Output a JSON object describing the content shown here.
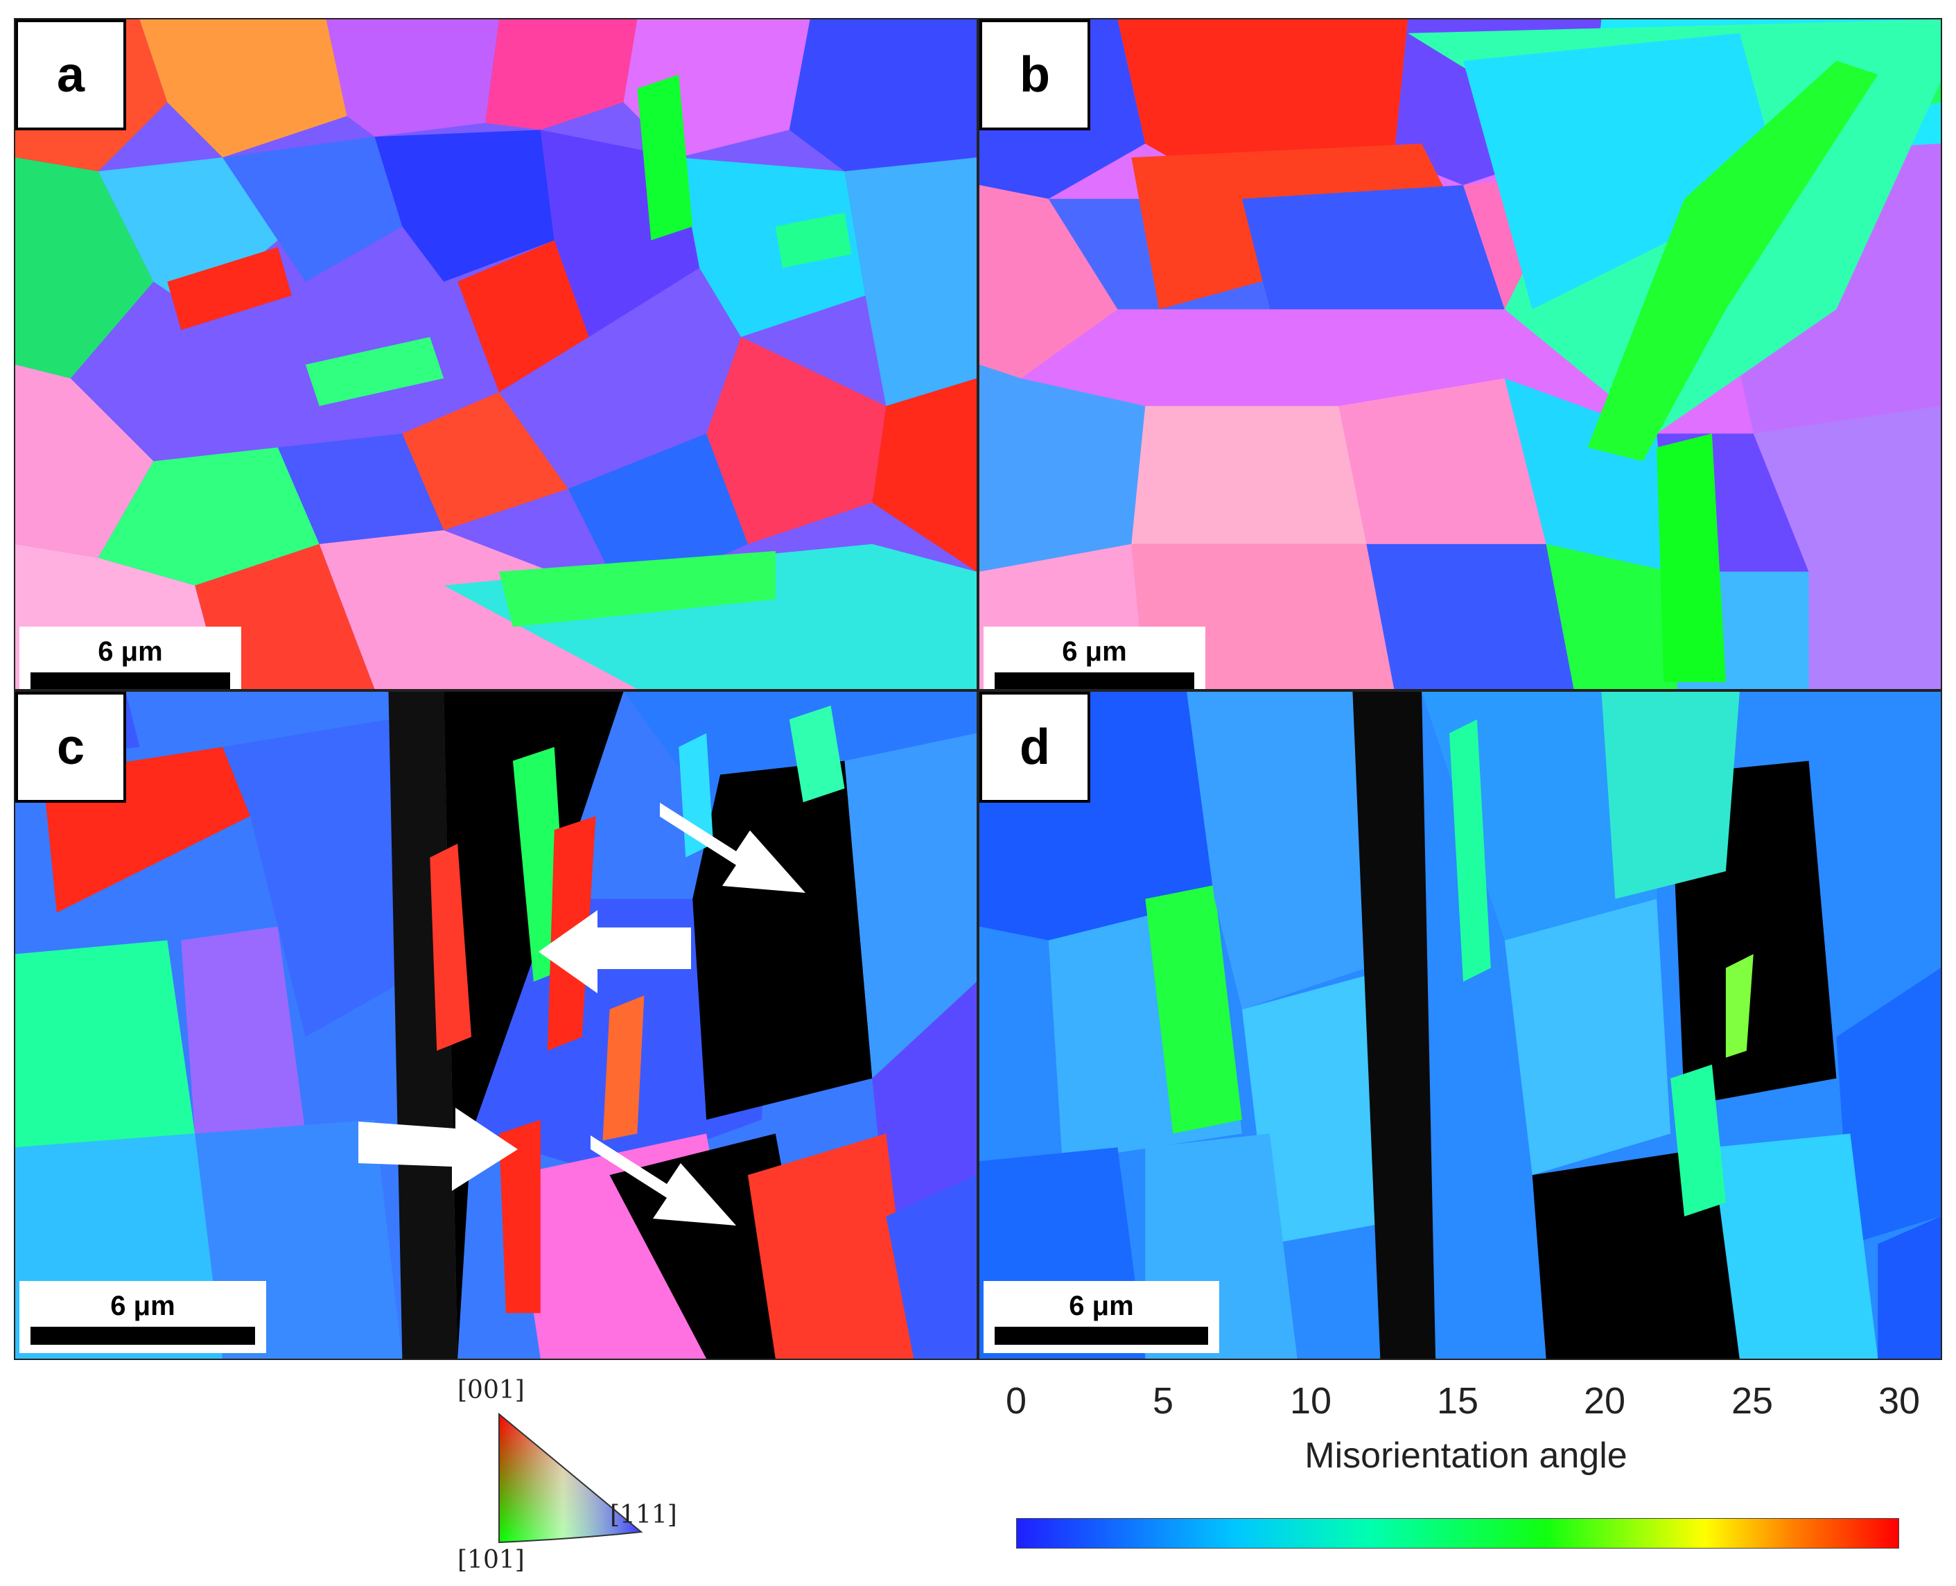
{
  "panels": [
    {
      "label": "a",
      "scale": "6 μm"
    },
    {
      "label": "b",
      "scale": "6 μm"
    },
    {
      "label": "c",
      "scale": "6 μm"
    },
    {
      "label": "d",
      "scale": "6 μm"
    }
  ],
  "ipf_key": {
    "top": "[001]",
    "right": "[111]",
    "bottom": "[101]"
  },
  "misorientation_legend": {
    "title": "Misorientation angle",
    "ticks": [
      "0",
      "5",
      "10",
      "15",
      "20",
      "25",
      "30"
    ]
  },
  "colors": {
    "red": "#ff2a1a",
    "green": "#1aff3a",
    "blue": "#2a3aff",
    "cyan": "#20d8ff",
    "magenta": "#d25cff",
    "pink": "#ff7ad0"
  }
}
